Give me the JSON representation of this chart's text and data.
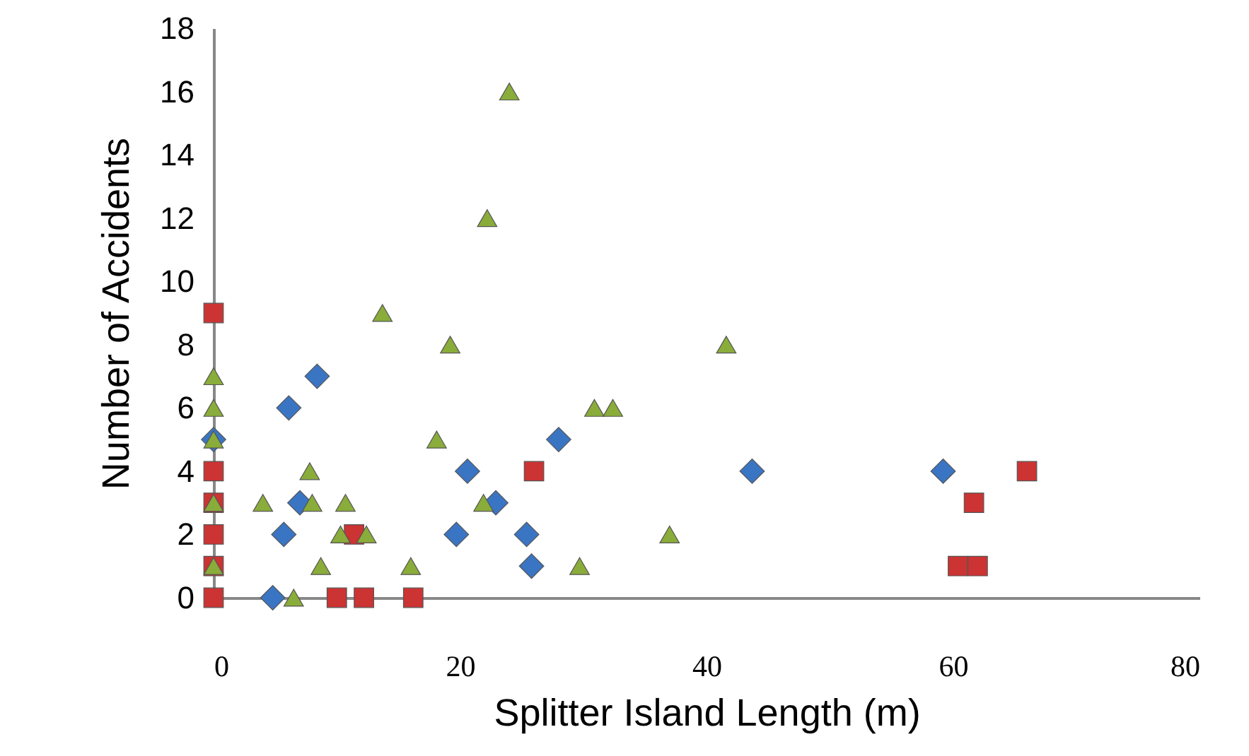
{
  "chart_data": {
    "type": "scatter",
    "xlabel": "Splitter Island Length (m)",
    "ylabel": "Number of Accidents",
    "xlim": [
      0,
      80
    ],
    "xticks": [
      0,
      20,
      40,
      60,
      80
    ],
    "ylim": [
      0,
      18
    ],
    "yticks": [
      0,
      2,
      4,
      6,
      8,
      10,
      12,
      14,
      16,
      18
    ],
    "grid": false,
    "series": [
      {
        "color": "#3a75c4",
        "marker": "diamond",
        "x": [
          0,
          6.1,
          8.4,
          7,
          5.7,
          4.8,
          20.6,
          22.9,
          19.7,
          25.4,
          25.8,
          28,
          43.7,
          59.2
        ],
        "values": [
          5,
          6,
          7,
          3,
          2,
          0,
          4,
          3,
          2,
          2,
          1,
          5,
          4,
          4
        ]
      },
      {
        "color": "#cc3333",
        "marker": "square",
        "x": [
          0,
          0,
          0,
          0,
          0,
          0,
          10,
          12.2,
          16.2,
          11.4,
          26,
          61.7,
          60.4,
          62,
          66
        ],
        "values": [
          9,
          4,
          3,
          2,
          1,
          0,
          0,
          0,
          0,
          2,
          4,
          3,
          1,
          1,
          4
        ]
      },
      {
        "color": "#8aac3a",
        "marker": "triangle",
        "x": [
          0,
          0,
          0,
          0,
          0,
          24,
          22.2,
          13.7,
          19.2,
          41.6,
          30.9,
          32.4,
          18.1,
          7.8,
          4,
          8,
          10.7,
          21.9,
          10.3,
          12.4,
          37,
          8.7,
          16,
          29.7,
          6.5
        ],
        "values": [
          7,
          6,
          5,
          3,
          1,
          16,
          12,
          9,
          8,
          8,
          6,
          6,
          5,
          4,
          3,
          3,
          3,
          3,
          2,
          2,
          2,
          1,
          1,
          1,
          0
        ]
      }
    ]
  }
}
